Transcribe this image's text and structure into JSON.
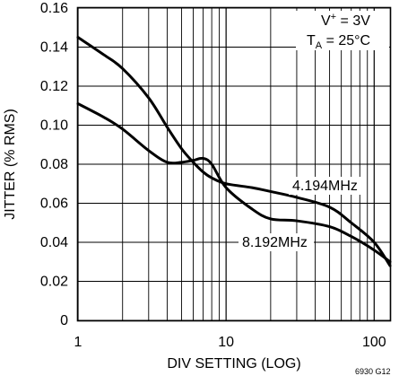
{
  "chart_data": {
    "type": "line",
    "title": "",
    "xlabel": "DIV SETTING (LOG)",
    "ylabel": "JITTER (% RMS)",
    "x_scale": "log",
    "xlim": [
      1,
      128
    ],
    "ylim": [
      0,
      0.16
    ],
    "x_ticks": [
      1,
      10,
      100
    ],
    "x_tick_labels": [
      "1",
      "10",
      "100"
    ],
    "y_ticks": [
      0,
      0.02,
      0.04,
      0.06,
      0.08,
      0.1,
      0.12,
      0.14,
      0.16
    ],
    "y_tick_labels": [
      "0",
      "0.02",
      "0.04",
      "0.06",
      "0.08",
      "0.10",
      "0.12",
      "0.14",
      "0.16"
    ],
    "grid": true,
    "series": [
      {
        "name": "4.194MHz",
        "x": [
          1,
          1.5,
          2,
          3,
          4,
          5,
          6,
          7,
          8,
          10,
          15,
          20,
          30,
          50,
          70,
          100,
          128
        ],
        "y": [
          0.145,
          0.136,
          0.129,
          0.114,
          0.099,
          0.088,
          0.081,
          0.076,
          0.073,
          0.07,
          0.068,
          0.066,
          0.063,
          0.058,
          0.05,
          0.04,
          0.028
        ]
      },
      {
        "name": "8.192MHz",
        "x": [
          1,
          1.5,
          2,
          3,
          4,
          5,
          6,
          7,
          8,
          10,
          15,
          20,
          30,
          50,
          70,
          100,
          128
        ],
        "y": [
          0.111,
          0.104,
          0.098,
          0.087,
          0.081,
          0.081,
          0.082,
          0.083,
          0.08,
          0.068,
          0.057,
          0.052,
          0.051,
          0.048,
          0.043,
          0.036,
          0.03
        ]
      }
    ],
    "annotations": {
      "supply_prefix": "V",
      "supply_sup": "+",
      "supply_value": " = 3V",
      "temp_prefix": "T",
      "temp_sub": "A",
      "temp_value": " = 25°C",
      "series_label_1": "4.194MHz",
      "series_label_2": "8.192MHz"
    },
    "footer_code": "6930 G12"
  }
}
